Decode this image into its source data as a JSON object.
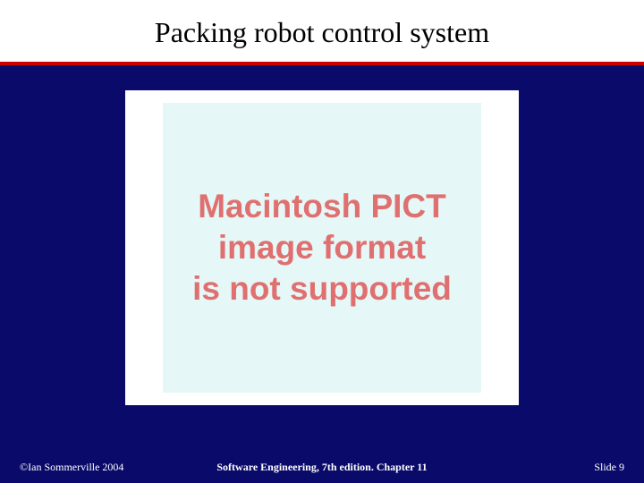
{
  "colors": {
    "slide_background": "#0a0a6b",
    "title_background": "#ffffff",
    "divider": "#cc0000",
    "image_outer_bg": "#ffffff",
    "image_inner_bg": "#e6f7f7",
    "error_text": "#e07070",
    "footer_text": "#ffffff",
    "title_text": "#000000"
  },
  "title": "Packing robot control system",
  "image_error": {
    "line1": "Macintosh PICT",
    "line2": "image format",
    "line3": "is not supported"
  },
  "footer": {
    "copyright": "©Ian Sommerville 2004",
    "center": "Software Engineering, 7th edition. Chapter 11",
    "slide_label": "Slide",
    "slide_number": "9"
  },
  "typography": {
    "title_fontsize": 32,
    "error_fontsize": 37,
    "footer_fontsize": 12
  },
  "layout": {
    "slide_width": 720,
    "slide_height": 540,
    "image_box_width": 440,
    "image_box_height": 352
  }
}
